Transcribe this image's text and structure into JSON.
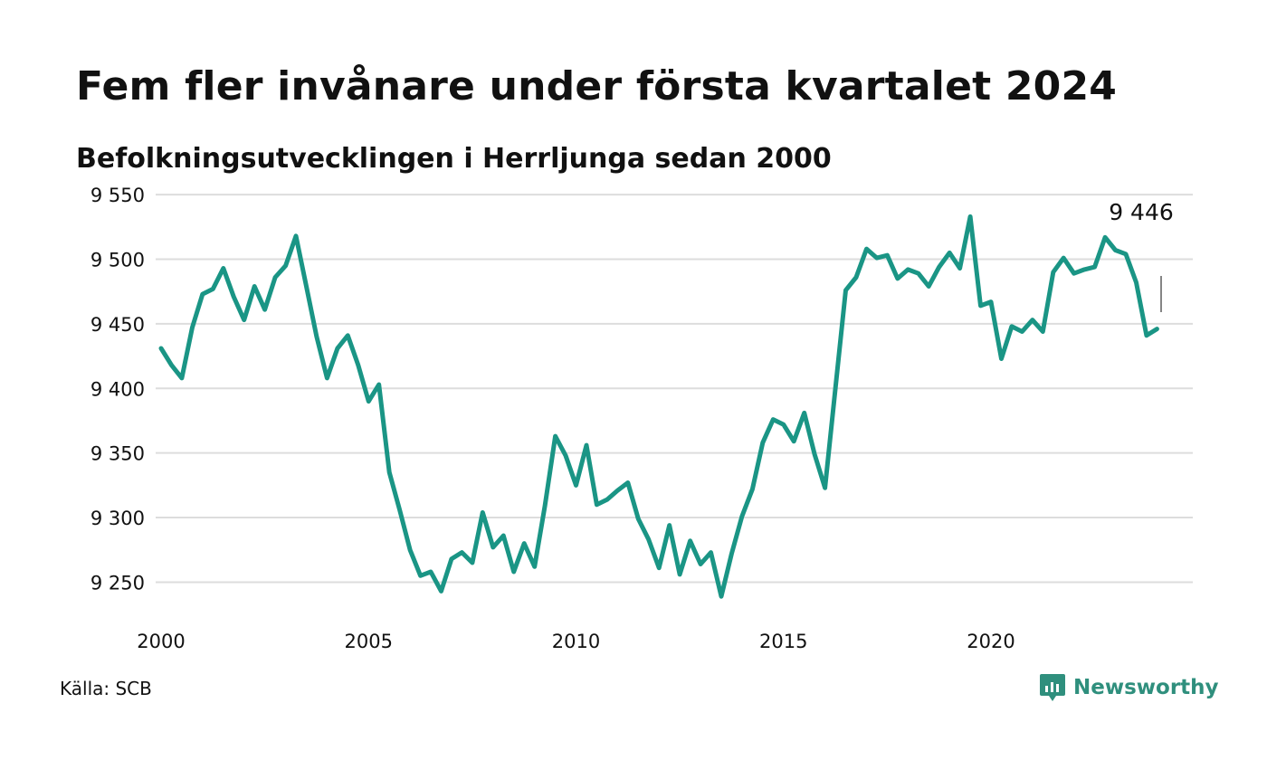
{
  "title": "Fem fler invånare under första kvartalet 2024",
  "subtitle": "Befolkningsutvecklingen i Herrljunga sedan 2000",
  "source": "Källa: SCB",
  "brand": {
    "name": "Newsworthy",
    "icon": "newsworthy-logo-icon",
    "color": "#2f8f7d"
  },
  "colors": {
    "line": "#1a9585",
    "grid": "#dddddd",
    "text": "#111111"
  },
  "chart_data": {
    "type": "line",
    "title": "Fem fler invånare under första kvartalet 2024",
    "subtitle": "Befolkningsutvecklingen i Herrljunga sedan 2000",
    "xlabel": "",
    "ylabel": "",
    "xlim": [
      2000,
      2024.25
    ],
    "ylim": [
      9230,
      9555
    ],
    "x_ticks": [
      2000,
      2005,
      2010,
      2015,
      2020
    ],
    "x_tick_labels": [
      "2000",
      "2005",
      "2010",
      "2015",
      "2020"
    ],
    "y_ticks": [
      9250,
      9300,
      9350,
      9400,
      9450,
      9500,
      9550
    ],
    "y_tick_labels": [
      "9 250",
      "9 300",
      "9 350",
      "9 400",
      "9 450",
      "9 500",
      "9 550"
    ],
    "grid": true,
    "series": [
      {
        "x_start": 2000.0,
        "x_step": 0.25,
        "values": [
          9431,
          9418,
          9408,
          9447,
          9473,
          9477,
          9493,
          9471,
          9453,
          9479,
          9461,
          9486,
          9495,
          9518,
          9479,
          9440,
          9408,
          9431,
          9441,
          9418,
          9390,
          9403,
          9335,
          9306,
          9275,
          9255,
          9258,
          9243,
          9268,
          9273,
          9265,
          9304,
          9277,
          9286,
          9258,
          9280,
          9262,
          9309,
          9363,
          9348,
          9325,
          9356,
          9310,
          9314,
          9321,
          9327,
          9299,
          9283,
          9261,
          9294,
          9256,
          9282,
          9264,
          9273,
          9239,
          9272,
          9301,
          9322,
          9358,
          9376,
          9372,
          9359,
          9381,
          9349,
          9323,
          9400,
          9476,
          9486,
          9508,
          9501,
          9503,
          9485,
          9492,
          9489,
          9479,
          9494,
          9505,
          9493,
          9533,
          9464,
          9467,
          9423,
          9448,
          9444,
          9453,
          9444,
          9490,
          9501,
          9489,
          9492,
          9494,
          9517,
          9507,
          9504,
          9482,
          9441,
          9446
        ]
      }
    ],
    "annotation": {
      "label": "9 446",
      "value": 9446
    }
  }
}
